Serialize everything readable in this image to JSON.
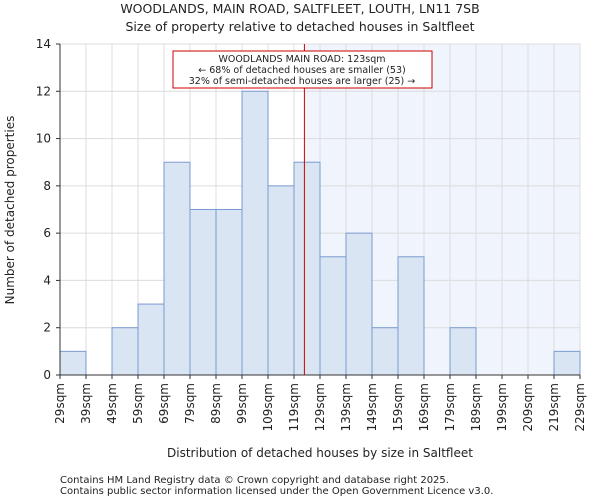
{
  "chart_data": {
    "type": "bar",
    "title": "WOODLANDS, MAIN ROAD, SALTFLEET, LOUTH, LN11 7SB",
    "subtitle": "Size of property relative to detached houses in Saltfleet",
    "xlabel": "Distribution of detached houses by size in Saltfleet",
    "ylabel": "Number of detached properties",
    "bin_edges": [
      29,
      39,
      49,
      59,
      69,
      79,
      89,
      99,
      109,
      119,
      129,
      139,
      149,
      159,
      169,
      179,
      189,
      199,
      209,
      219,
      229
    ],
    "tick_labels": [
      "29sqm",
      "39sqm",
      "49sqm",
      "59sqm",
      "69sqm",
      "79sqm",
      "89sqm",
      "99sqm",
      "109sqm",
      "119sqm",
      "129sqm",
      "139sqm",
      "149sqm",
      "159sqm",
      "169sqm",
      "179sqm",
      "189sqm",
      "199sqm",
      "209sqm",
      "219sqm",
      "229sqm"
    ],
    "values": [
      1,
      0,
      2,
      3,
      9,
      7,
      7,
      12,
      8,
      9,
      5,
      6,
      2,
      5,
      0,
      2,
      0,
      0,
      0,
      1
    ],
    "ylim": [
      0,
      14
    ],
    "yticks": [
      0,
      2,
      4,
      6,
      8,
      10,
      12,
      14
    ],
    "grid": true,
    "marker": {
      "value": 123,
      "color": "#cc0000"
    },
    "annotation": {
      "line1": "WOODLANDS MAIN ROAD: 123sqm",
      "line2": "← 68% of detached houses are smaller (53)",
      "line3": "32% of semi-detached houses are larger (25) →"
    },
    "colors": {
      "bar_fill": "#dae5f4",
      "bar_stroke": "#7a9bd0",
      "highlight": "#f0f4fc"
    }
  },
  "footer": {
    "line1": "Contains HM Land Registry data © Crown copyright and database right 2025.",
    "line2": "Contains public sector information licensed under the Open Government Licence v3.0."
  }
}
